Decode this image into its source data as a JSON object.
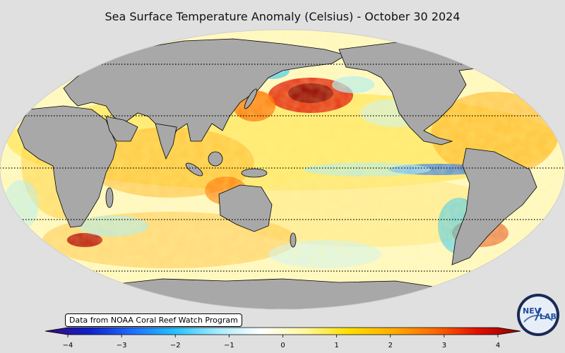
{
  "title": "Sea Surface Temperature Anomaly (Celsius) - October 30 2024",
  "credit": "Data from NOAA Coral Reef Watch Program",
  "colorbar": {
    "min": -4,
    "max": 4,
    "tick_labels": [
      "−4",
      "−3",
      "−2",
      "−1",
      "0",
      "1",
      "2",
      "3",
      "4"
    ],
    "colors": [
      "#3a0a7a",
      "#1020c8",
      "#1e6cff",
      "#23c2ff",
      "#a8ecff",
      "#ffffff",
      "#fff7a0",
      "#ffe000",
      "#ffb000",
      "#ff6a00",
      "#e01000",
      "#8a0000"
    ]
  },
  "logo": {
    "text_left": "NEV",
    "text_right": "LAB"
  },
  "colors": {
    "land": "#a8a8a8",
    "ocean_neutral": "#fffbe0",
    "background": "#e0e0e0"
  }
}
